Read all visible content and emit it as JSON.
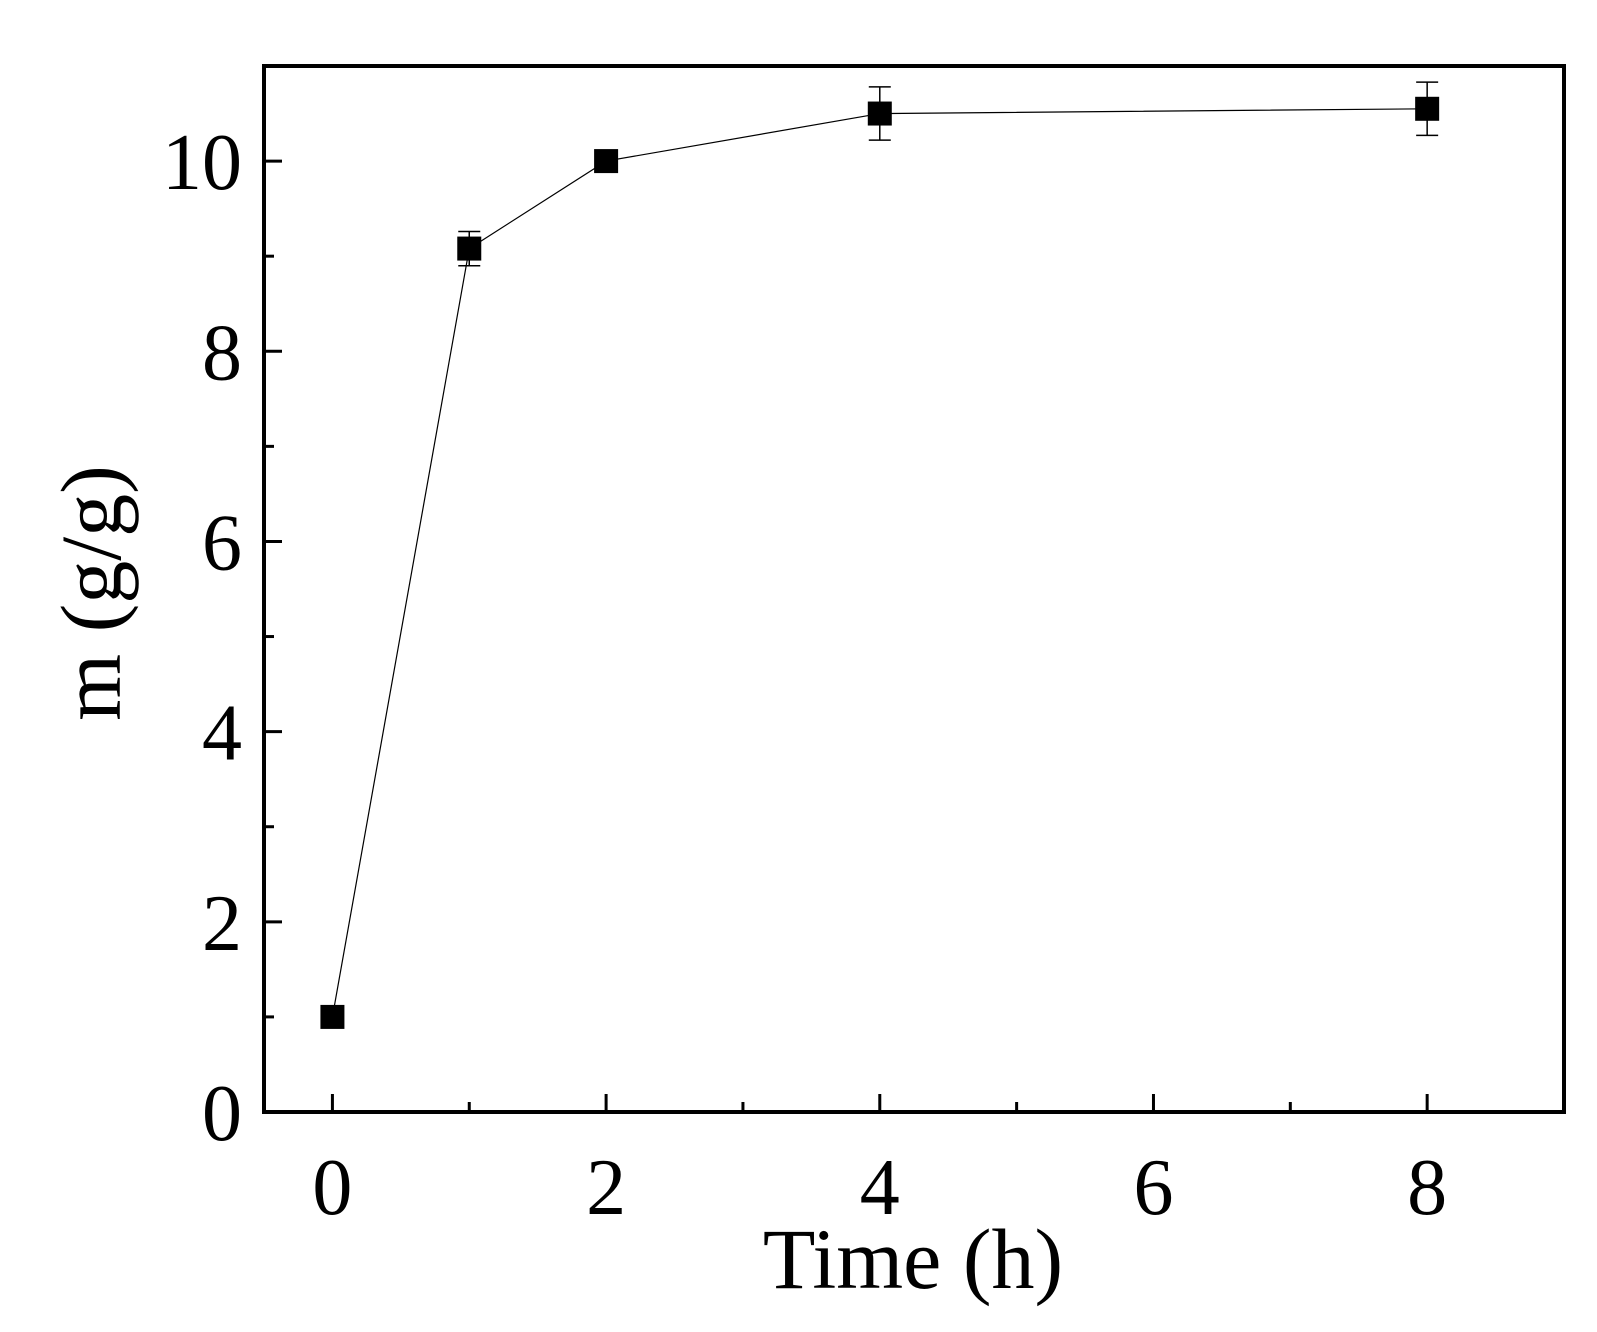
{
  "chart_data": {
    "type": "line",
    "title": "",
    "xlabel": "Time (h)",
    "ylabel": "m (g/g)",
    "xlim": [
      -0.5,
      9
    ],
    "ylim": [
      0,
      11
    ],
    "xticks": [
      0,
      2,
      4,
      6,
      8
    ],
    "xticks_minor": [
      1,
      3,
      5,
      7
    ],
    "yticks": [
      0,
      2,
      4,
      6,
      8,
      10
    ],
    "yticks_minor": [
      1,
      3,
      5,
      7,
      9
    ],
    "grid": false,
    "legend": "none",
    "marker": "square",
    "color": "#000000",
    "series": [
      {
        "x": [
          0,
          1,
          2,
          4,
          8
        ],
        "y": [
          1.0,
          9.08,
          10.0,
          10.5,
          10.55
        ],
        "error": [
          0.0,
          0.18,
          0.0,
          0.28,
          0.28
        ]
      }
    ]
  }
}
